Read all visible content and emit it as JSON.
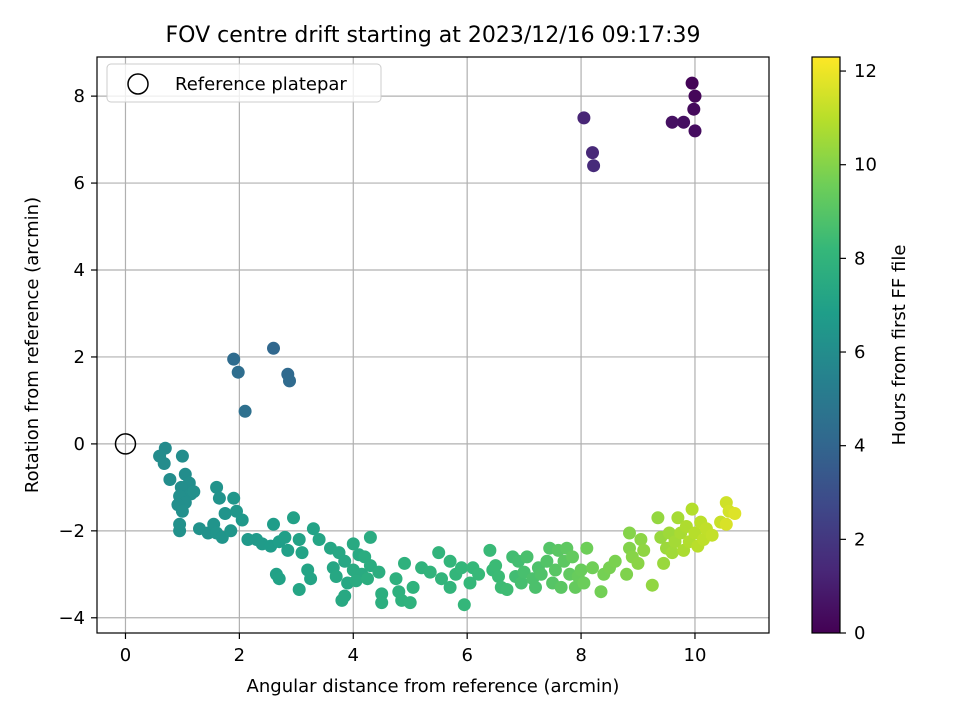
{
  "chart_data": {
    "type": "scatter",
    "title": "FOV centre drift starting at 2023/12/16 09:17:39",
    "xlabel": "Angular distance from reference (arcmin)",
    "ylabel": "Rotation from reference (arcmin)",
    "xlim": [
      -0.5,
      11.3
    ],
    "ylim": [
      -4.35,
      8.9
    ],
    "xticks": [
      0,
      2,
      4,
      6,
      8,
      10
    ],
    "yticks": [
      -4,
      -2,
      0,
      2,
      4,
      6,
      8
    ],
    "xtick_labels": [
      "0",
      "2",
      "4",
      "6",
      "8",
      "10"
    ],
    "ytick_labels": [
      "−4",
      "−2",
      "0",
      "2",
      "4",
      "6",
      "8"
    ],
    "grid": true,
    "legend": {
      "position": "top-left",
      "label": "Reference platepar",
      "marker": "open-circle"
    },
    "reference_point": {
      "x": 0,
      "y": 0
    },
    "colorbar": {
      "label": "Hours from first FF file",
      "colormap": "viridis",
      "min": 0,
      "max": 12.3,
      "ticks": [
        0,
        2,
        4,
        6,
        8,
        10,
        12
      ],
      "tick_labels": [
        "0",
        "2",
        "4",
        "6",
        "8",
        "10",
        "12"
      ],
      "stops": [
        "#440154",
        "#482878",
        "#3e4989",
        "#31688e",
        "#26828e",
        "#1f9e89",
        "#35b779",
        "#6ece58",
        "#b5de2b",
        "#fde725"
      ]
    },
    "points": [
      [
        9.95,
        8.3,
        0.1
      ],
      [
        10.0,
        8.0,
        0.2
      ],
      [
        9.98,
        7.7,
        0.3
      ],
      [
        10.0,
        7.2,
        0.4
      ],
      [
        9.8,
        7.4,
        0.5
      ],
      [
        9.6,
        7.4,
        0.55
      ],
      [
        8.05,
        7.5,
        1.3
      ],
      [
        8.2,
        6.7,
        1.4
      ],
      [
        8.22,
        6.4,
        1.5
      ],
      [
        2.6,
        2.2,
        4.1
      ],
      [
        2.85,
        1.6,
        4.2
      ],
      [
        2.88,
        1.45,
        4.25
      ],
      [
        1.9,
        1.95,
        4.3
      ],
      [
        1.98,
        1.65,
        4.4
      ],
      [
        2.1,
        0.75,
        4.5
      ],
      [
        0.7,
        -0.1,
        5.9
      ],
      [
        0.68,
        -0.45,
        5.95
      ],
      [
        0.6,
        -0.28,
        5.95
      ],
      [
        0.78,
        -0.82,
        6.0
      ],
      [
        1.0,
        -0.28,
        6.0
      ],
      [
        1.05,
        -0.7,
        6.02
      ],
      [
        1.12,
        -0.9,
        6.05
      ],
      [
        0.98,
        -1.0,
        6.05
      ],
      [
        1.15,
        -1.15,
        6.1
      ],
      [
        0.95,
        -1.2,
        6.1
      ],
      [
        1.05,
        -1.35,
        6.12
      ],
      [
        0.92,
        -1.4,
        6.12
      ],
      [
        1.2,
        -1.1,
        6.15
      ],
      [
        1.0,
        -1.55,
        6.15
      ],
      [
        0.95,
        -1.85,
        6.2
      ],
      [
        0.95,
        -2.0,
        6.2
      ],
      [
        1.3,
        -1.95,
        6.25
      ],
      [
        1.45,
        -2.05,
        6.25
      ],
      [
        1.6,
        -1.0,
        6.3
      ],
      [
        1.65,
        -1.25,
        6.3
      ],
      [
        1.75,
        -1.6,
        6.35
      ],
      [
        1.55,
        -1.85,
        6.35
      ],
      [
        1.6,
        -2.05,
        6.4
      ],
      [
        1.7,
        -2.15,
        6.4
      ],
      [
        1.85,
        -2.0,
        6.45
      ],
      [
        1.9,
        -1.25,
        6.45
      ],
      [
        1.95,
        -1.55,
        6.5
      ],
      [
        2.05,
        -1.75,
        6.55
      ],
      [
        2.15,
        -2.2,
        6.6
      ],
      [
        2.3,
        -2.2,
        6.65
      ],
      [
        2.4,
        -2.3,
        6.7
      ],
      [
        2.55,
        -2.35,
        6.75
      ],
      [
        2.6,
        -1.85,
        6.8
      ],
      [
        2.7,
        -2.25,
        6.85
      ],
      [
        2.8,
        -2.15,
        6.9
      ],
      [
        2.85,
        -2.45,
        6.95
      ],
      [
        2.95,
        -1.7,
        7.0
      ],
      [
        2.65,
        -3.0,
        7.0
      ],
      [
        2.7,
        -3.1,
        7.05
      ],
      [
        3.05,
        -2.2,
        7.05
      ],
      [
        3.1,
        -2.5,
        7.1
      ],
      [
        3.3,
        -1.95,
        7.1
      ],
      [
        3.2,
        -2.9,
        7.15
      ],
      [
        3.25,
        -3.1,
        7.15
      ],
      [
        3.05,
        -3.35,
        7.2
      ],
      [
        3.4,
        -2.2,
        7.2
      ],
      [
        3.6,
        -2.4,
        7.25
      ],
      [
        3.65,
        -2.85,
        7.25
      ],
      [
        3.75,
        -2.5,
        7.3
      ],
      [
        3.85,
        -2.7,
        7.3
      ],
      [
        3.7,
        -3.05,
        7.35
      ],
      [
        3.9,
        -3.2,
        7.35
      ],
      [
        3.85,
        -3.5,
        7.4
      ],
      [
        3.8,
        -3.6,
        7.4
      ],
      [
        4.0,
        -2.3,
        7.45
      ],
      [
        4.1,
        -2.55,
        7.45
      ],
      [
        4.0,
        -2.9,
        7.5
      ],
      [
        4.15,
        -3.0,
        7.5
      ],
      [
        4.05,
        -3.15,
        7.55
      ],
      [
        4.3,
        -2.15,
        7.55
      ],
      [
        4.2,
        -2.6,
        7.6
      ],
      [
        4.3,
        -2.8,
        7.6
      ],
      [
        4.25,
        -3.1,
        7.65
      ],
      [
        4.45,
        -2.95,
        7.65
      ],
      [
        4.5,
        -3.45,
        7.7
      ],
      [
        4.5,
        -3.65,
        7.7
      ],
      [
        4.75,
        -3.1,
        7.8
      ],
      [
        4.8,
        -3.4,
        7.8
      ],
      [
        4.9,
        -2.75,
        7.85
      ],
      [
        4.85,
        -3.6,
        7.85
      ],
      [
        5.0,
        -3.65,
        7.9
      ],
      [
        5.05,
        -3.3,
        7.9
      ],
      [
        5.2,
        -2.85,
        7.95
      ],
      [
        5.35,
        -2.95,
        8.0
      ],
      [
        5.5,
        -2.5,
        8.0
      ],
      [
        5.55,
        -3.1,
        8.05
      ],
      [
        5.7,
        -3.3,
        8.05
      ],
      [
        5.7,
        -2.7,
        8.1
      ],
      [
        5.8,
        -3.0,
        8.1
      ],
      [
        5.9,
        -2.85,
        8.15
      ],
      [
        5.95,
        -3.7,
        8.15
      ],
      [
        6.05,
        -3.2,
        8.2
      ],
      [
        6.1,
        -2.85,
        8.2
      ],
      [
        6.2,
        -3.0,
        8.25
      ],
      [
        6.4,
        -2.45,
        8.3
      ],
      [
        6.45,
        -2.9,
        8.3
      ],
      [
        6.5,
        -2.8,
        8.35
      ],
      [
        6.55,
        -3.05,
        8.35
      ],
      [
        6.6,
        -3.3,
        8.4
      ],
      [
        6.7,
        -3.35,
        8.45
      ],
      [
        6.8,
        -2.6,
        8.5
      ],
      [
        6.85,
        -3.05,
        8.5
      ],
      [
        6.9,
        -2.7,
        8.55
      ],
      [
        6.95,
        -3.2,
        8.6
      ],
      [
        7.0,
        -2.95,
        8.65
      ],
      [
        7.05,
        -2.6,
        8.7
      ],
      [
        7.15,
        -3.1,
        8.75
      ],
      [
        7.2,
        -3.3,
        8.75
      ],
      [
        7.25,
        -2.85,
        8.8
      ],
      [
        7.3,
        -3.0,
        8.85
      ],
      [
        7.4,
        -2.7,
        8.9
      ],
      [
        7.45,
        -2.4,
        8.95
      ],
      [
        7.5,
        -3.2,
        9.0
      ],
      [
        7.55,
        -2.9,
        9.05
      ],
      [
        7.6,
        -2.45,
        9.1
      ],
      [
        7.65,
        -3.3,
        9.1
      ],
      [
        7.7,
        -2.7,
        9.15
      ],
      [
        7.75,
        -2.4,
        9.2
      ],
      [
        7.8,
        -3.0,
        9.25
      ],
      [
        7.85,
        -2.6,
        9.3
      ],
      [
        7.9,
        -3.3,
        9.35
      ],
      [
        7.95,
        -3.05,
        9.4
      ],
      [
        8.0,
        -2.9,
        9.45
      ],
      [
        8.05,
        -3.2,
        9.5
      ],
      [
        8.1,
        -2.4,
        9.55
      ],
      [
        8.2,
        -2.85,
        9.6
      ],
      [
        8.35,
        -3.4,
        9.65
      ],
      [
        8.4,
        -3.0,
        9.7
      ],
      [
        8.5,
        -2.85,
        9.75
      ],
      [
        8.6,
        -2.7,
        9.8
      ],
      [
        8.8,
        -3.0,
        9.9
      ],
      [
        8.85,
        -2.4,
        9.95
      ],
      [
        8.85,
        -2.05,
        10.0
      ],
      [
        8.9,
        -2.6,
        10.05
      ],
      [
        9.0,
        -2.75,
        10.1
      ],
      [
        9.05,
        -2.2,
        10.15
      ],
      [
        9.1,
        -2.45,
        10.2
      ],
      [
        9.25,
        -3.25,
        10.25
      ],
      [
        9.35,
        -1.7,
        10.3
      ],
      [
        9.4,
        -2.15,
        10.35
      ],
      [
        9.45,
        -2.75,
        10.4
      ],
      [
        9.5,
        -2.4,
        10.45
      ],
      [
        9.55,
        -2.05,
        10.5
      ],
      [
        9.6,
        -2.5,
        10.55
      ],
      [
        9.65,
        -2.25,
        10.6
      ],
      [
        9.7,
        -1.7,
        10.65
      ],
      [
        9.75,
        -2.05,
        10.7
      ],
      [
        9.8,
        -2.45,
        10.75
      ],
      [
        9.85,
        -1.9,
        10.8
      ],
      [
        9.9,
        -2.25,
        10.85
      ],
      [
        9.95,
        -1.5,
        10.9
      ],
      [
        10.0,
        -2.05,
        10.95
      ],
      [
        10.05,
        -2.35,
        11.0
      ],
      [
        10.1,
        -1.8,
        11.05
      ],
      [
        10.15,
        -2.2,
        11.1
      ],
      [
        10.2,
        -1.95,
        11.15
      ],
      [
        10.3,
        -2.1,
        11.2
      ],
      [
        10.45,
        -1.8,
        11.3
      ],
      [
        10.55,
        -1.35,
        11.4
      ],
      [
        10.6,
        -1.55,
        11.5
      ],
      [
        10.55,
        -1.85,
        11.6
      ],
      [
        10.7,
        -1.6,
        11.7
      ]
    ]
  }
}
